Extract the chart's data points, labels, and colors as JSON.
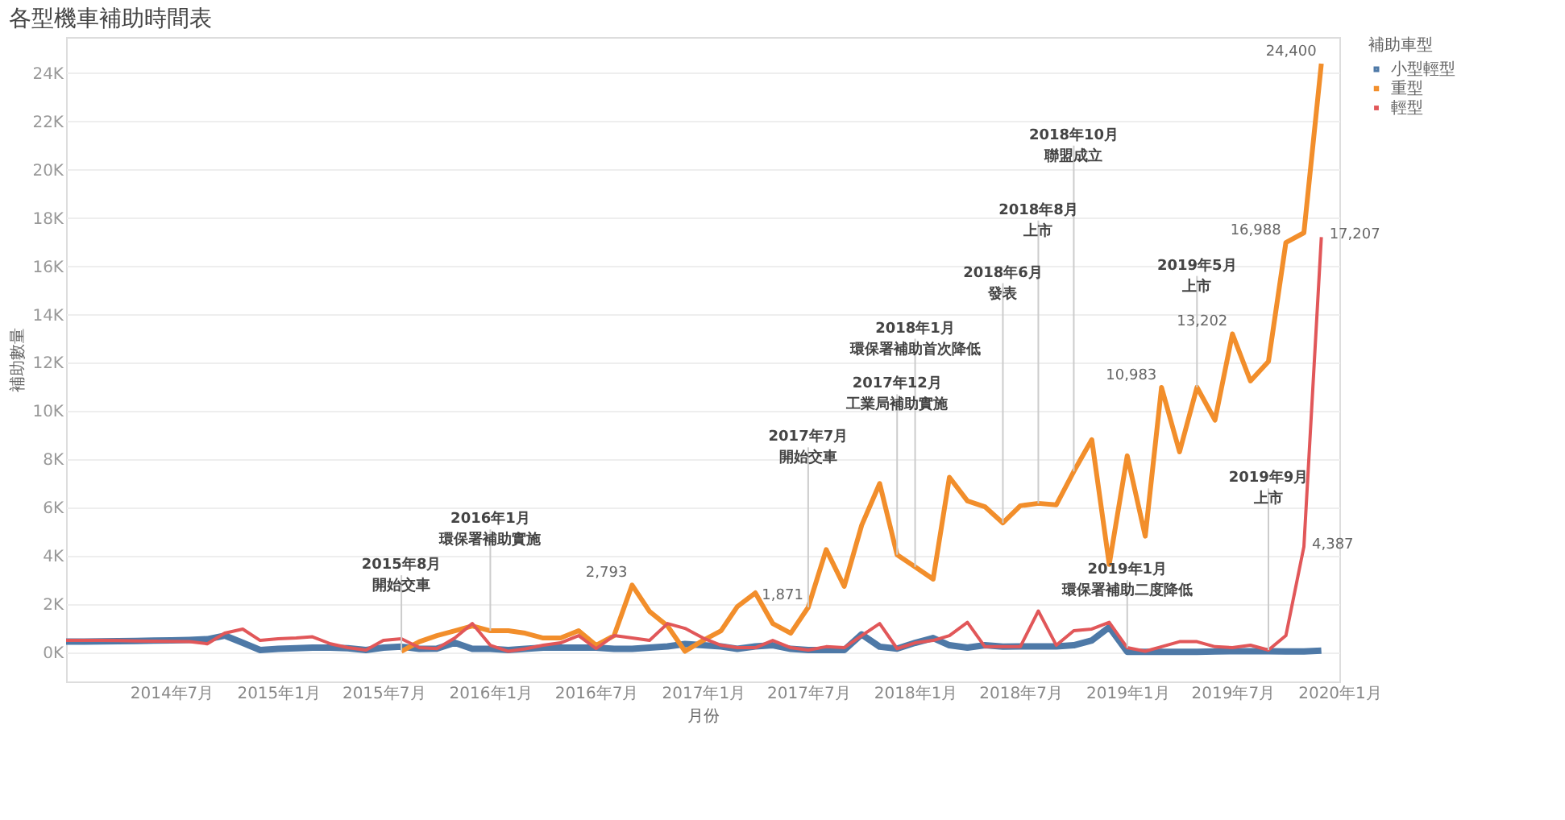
{
  "chart_data": {
    "type": "line",
    "title": "各型機車補助時間表",
    "xlabel": "月份",
    "ylabel": "補助數量",
    "legend_title": "補助車型",
    "legend": "right",
    "grid": "y",
    "line_style": "solid",
    "marker": "none",
    "x": [
      "2014-01",
      "2014-02",
      "2014-03",
      "2014-04",
      "2014-05",
      "2014-06",
      "2014-07",
      "2014-08",
      "2014-09",
      "2014-10",
      "2014-11",
      "2014-12",
      "2015-01",
      "2015-02",
      "2015-03",
      "2015-04",
      "2015-05",
      "2015-06",
      "2015-07",
      "2015-08",
      "2015-09",
      "2015-10",
      "2015-11",
      "2015-12",
      "2016-01",
      "2016-02",
      "2016-03",
      "2016-04",
      "2016-05",
      "2016-06",
      "2016-07",
      "2016-08",
      "2016-09",
      "2016-10",
      "2016-11",
      "2016-12",
      "2017-01",
      "2017-02",
      "2017-03",
      "2017-04",
      "2017-05",
      "2017-06",
      "2017-07",
      "2017-08",
      "2017-09",
      "2017-10",
      "2017-11",
      "2017-12",
      "2018-01",
      "2018-02",
      "2018-03",
      "2018-04",
      "2018-05",
      "2018-06",
      "2018-07",
      "2018-08",
      "2018-09",
      "2018-10",
      "2018-11",
      "2018-12",
      "2019-01",
      "2019-02",
      "2019-03",
      "2019-04",
      "2019-05",
      "2019-06",
      "2019-07",
      "2019-08",
      "2019-09",
      "2019-10",
      "2019-11",
      "2019-12"
    ],
    "xlim": [
      "2014-01",
      "2020-01"
    ],
    "xticks": [
      {
        "value": "2014-07",
        "label": "2014年7月"
      },
      {
        "value": "2015-01",
        "label": "2015年1月"
      },
      {
        "value": "2015-07",
        "label": "2015年7月"
      },
      {
        "value": "2016-01",
        "label": "2016年1月"
      },
      {
        "value": "2016-07",
        "label": "2016年7月"
      },
      {
        "value": "2017-01",
        "label": "2017年1月"
      },
      {
        "value": "2017-07",
        "label": "2017年7月"
      },
      {
        "value": "2018-01",
        "label": "2018年1月"
      },
      {
        "value": "2018-07",
        "label": "2018年7月"
      },
      {
        "value": "2019-01",
        "label": "2019年1月"
      },
      {
        "value": "2019-07",
        "label": "2019年7月"
      },
      {
        "value": "2020-01",
        "label": "2020年1月"
      }
    ],
    "ylim": [
      -1200,
      25500
    ],
    "yticks": [
      {
        "value": 0,
        "label": "0K"
      },
      {
        "value": 2000,
        "label": "2K"
      },
      {
        "value": 4000,
        "label": "4K"
      },
      {
        "value": 6000,
        "label": "6K"
      },
      {
        "value": 8000,
        "label": "8K"
      },
      {
        "value": 10000,
        "label": "10K"
      },
      {
        "value": 12000,
        "label": "12K"
      },
      {
        "value": 14000,
        "label": "14K"
      },
      {
        "value": 16000,
        "label": "16K"
      },
      {
        "value": 18000,
        "label": "18K"
      },
      {
        "value": 20000,
        "label": "20K"
      },
      {
        "value": 22000,
        "label": "22K"
      },
      {
        "value": 24000,
        "label": "24K"
      }
    ],
    "series": [
      {
        "name": "小型輕型",
        "color": "#4e79a7",
        "values": [
          450,
          450,
          460,
          470,
          480,
          490,
          500,
          520,
          550,
          700,
          400,
          100,
          150,
          180,
          200,
          200,
          180,
          100,
          200,
          240,
          150,
          160,
          400,
          150,
          150,
          100,
          150,
          200,
          200,
          200,
          200,
          150,
          150,
          200,
          250,
          350,
          300,
          250,
          150,
          250,
          300,
          150,
          100,
          100,
          100,
          750,
          240,
          160,
          400,
          600,
          300,
          200,
          300,
          240,
          250,
          250,
          250,
          300,
          500,
          1050,
          30,
          30,
          30,
          30,
          30,
          40,
          50,
          50,
          50,
          40,
          40,
          80
        ]
      },
      {
        "name": "重型",
        "color": "#f28e2b",
        "values": [
          null,
          null,
          null,
          null,
          null,
          null,
          null,
          null,
          null,
          null,
          null,
          null,
          null,
          null,
          null,
          null,
          null,
          null,
          null,
          50,
          450,
          700,
          900,
          1100,
          900,
          900,
          800,
          600,
          600,
          900,
          300,
          700,
          2793,
          1700,
          1100,
          50,
          500,
          900,
          1900,
          2470,
          1200,
          800,
          1871,
          4260,
          2740,
          5270,
          7000,
          4050,
          3550,
          3040,
          7260,
          6280,
          6040,
          5370,
          6080,
          6180,
          6120,
          7500,
          8820,
          3650,
          8150,
          4820,
          10983,
          8310,
          10990,
          9630,
          13202,
          11250,
          12060,
          16988,
          17390,
          24400
        ],
        "value_labels": [
          null,
          null,
          null,
          null,
          null,
          null,
          null,
          null,
          null,
          null,
          null,
          null,
          null,
          null,
          null,
          null,
          null,
          null,
          null,
          null,
          null,
          null,
          null,
          null,
          null,
          null,
          null,
          null,
          null,
          null,
          null,
          null,
          "2,793",
          null,
          null,
          null,
          null,
          null,
          null,
          null,
          null,
          null,
          "1,871",
          null,
          null,
          null,
          null,
          null,
          null,
          null,
          null,
          null,
          null,
          null,
          null,
          null,
          null,
          null,
          null,
          null,
          null,
          null,
          "10,983",
          null,
          null,
          null,
          "13,202",
          null,
          null,
          "16,988",
          null,
          "24,400"
        ]
      },
      {
        "name": "輕型",
        "color": "#e15759",
        "values": [
          500,
          500,
          500,
          490,
          480,
          470,
          460,
          450,
          360,
          800,
          970,
          500,
          570,
          600,
          650,
          360,
          200,
          100,
          500,
          570,
          200,
          160,
          600,
          1200,
          300,
          50,
          150,
          300,
          400,
          700,
          160,
          700,
          600,
          500,
          1200,
          1000,
          600,
          300,
          200,
          200,
          500,
          200,
          100,
          240,
          200,
          700,
          1200,
          160,
          400,
          500,
          700,
          1250,
          240,
          240,
          240,
          1720,
          300,
          900,
          970,
          1250,
          200,
          50,
          240,
          450,
          450,
          240,
          200,
          300,
          100,
          700,
          4387,
          17207
        ],
        "value_labels": [
          null,
          null,
          null,
          null,
          null,
          null,
          null,
          null,
          null,
          null,
          null,
          null,
          null,
          null,
          null,
          null,
          null,
          null,
          null,
          null,
          null,
          null,
          null,
          null,
          null,
          null,
          null,
          null,
          null,
          null,
          null,
          null,
          null,
          null,
          null,
          null,
          null,
          null,
          null,
          null,
          null,
          null,
          null,
          null,
          null,
          null,
          null,
          null,
          null,
          null,
          null,
          null,
          null,
          null,
          null,
          null,
          null,
          null,
          null,
          null,
          null,
          null,
          null,
          null,
          null,
          null,
          null,
          null,
          null,
          null,
          "4,387",
          "17,207"
        ]
      }
    ],
    "annotations": [
      {
        "text": "2015年8月",
        "x": "2015-08",
        "y": 50
      },
      {
        "text": "開始交車",
        "x": "2015-08",
        "y": 50
      },
      {
        "text": "2016年1月",
        "x": "2016-01",
        "y": 900
      },
      {
        "text": "環保署補助實施",
        "x": "2016-01",
        "y": 900
      },
      {
        "text": "2017年7月",
        "x": "2017-07",
        "y": 1871
      },
      {
        "text": "開始交車",
        "x": "2017-07",
        "y": 1871
      },
      {
        "text": "2017年12月",
        "x": "2017-12",
        "y": 4050
      },
      {
        "text": "工業局補助實施",
        "x": "2017-12",
        "y": 4050
      },
      {
        "text": "2018年1月",
        "x": "2018-01",
        "y": 3550
      },
      {
        "text": "環保署補助首次降低",
        "x": "2018-01",
        "y": 3550
      },
      {
        "text": "2018年6月",
        "x": "2018-06",
        "y": 5370
      },
      {
        "text": "發表",
        "x": "2018-06",
        "y": 5370
      },
      {
        "text": "2018年8月",
        "x": "2018-08",
        "y": 6180
      },
      {
        "text": "上市",
        "x": "2018-08",
        "y": 6180
      },
      {
        "text": "2018年10月",
        "x": "2018-10",
        "y": 7500
      },
      {
        "text": "聯盟成立",
        "x": "2018-10",
        "y": 7500
      },
      {
        "text": "2019年1月",
        "x": "2019-01",
        "y": 200
      },
      {
        "text": "環保署補助二度降低",
        "x": "2019-01",
        "y": 200
      },
      {
        "text": "2019年5月",
        "x": "2019-05",
        "y": 10990
      },
      {
        "text": "上市",
        "x": "2019-05",
        "y": 10990
      },
      {
        "text": "2019年9月",
        "x": "2019-09",
        "y": 100
      },
      {
        "text": "上市",
        "x": "2019-09",
        "y": 100
      }
    ]
  }
}
